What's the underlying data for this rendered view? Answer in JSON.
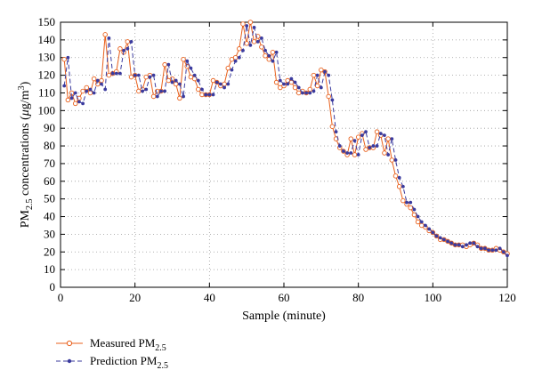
{
  "chart_data": {
    "type": "line",
    "title": "",
    "xlabel": "Sample (minute)",
    "ylabel": {
      "main": "PM",
      "sub": "2.5",
      "rest": " concentrations (",
      "unit_mu": "μ",
      "unit_g": "g/m",
      "unit_sup": "3",
      "close": ")"
    },
    "xlim": [
      0,
      120
    ],
    "ylim": [
      0,
      150
    ],
    "x_ticks": [
      0,
      20,
      40,
      60,
      80,
      100,
      120
    ],
    "y_ticks": [
      0,
      10,
      20,
      30,
      40,
      50,
      60,
      70,
      80,
      90,
      100,
      110,
      120,
      130,
      140,
      150
    ],
    "grid": true,
    "grid_style": "dotted",
    "legend_position": "below plot, left",
    "x": [
      1,
      2,
      3,
      4,
      5,
      6,
      7,
      8,
      9,
      10,
      11,
      12,
      13,
      14,
      15,
      16,
      17,
      18,
      19,
      20,
      21,
      22,
      23,
      24,
      25,
      26,
      27,
      28,
      29,
      30,
      31,
      32,
      33,
      34,
      35,
      36,
      37,
      38,
      39,
      40,
      41,
      42,
      43,
      44,
      45,
      46,
      47,
      48,
      49,
      50,
      51,
      52,
      53,
      54,
      55,
      56,
      57,
      58,
      59,
      60,
      61,
      62,
      63,
      64,
      65,
      66,
      67,
      68,
      69,
      70,
      71,
      72,
      73,
      74,
      75,
      76,
      77,
      78,
      79,
      80,
      81,
      82,
      83,
      84,
      85,
      86,
      87,
      88,
      89,
      90,
      91,
      92,
      93,
      94,
      95,
      96,
      97,
      98,
      99,
      100,
      101,
      102,
      103,
      104,
      105,
      106,
      107,
      108,
      109,
      110,
      111,
      112,
      113,
      114,
      115,
      116,
      117,
      118,
      119,
      120
    ],
    "series": [
      {
        "name": {
          "main": "Measured PM",
          "sub": "2.5"
        },
        "color": "#e8601c",
        "marker": "open-circle",
        "line_style": "solid",
        "values": [
          129,
          106,
          110,
          104,
          107,
          111,
          113,
          110,
          118,
          115,
          117,
          143,
          120,
          121,
          122,
          135,
          133,
          139,
          119,
          120,
          111,
          112,
          119,
          120,
          108,
          111,
          111,
          126,
          117,
          118,
          115,
          107,
          129,
          125,
          119,
          118,
          112,
          109,
          109,
          109,
          117,
          116,
          114,
          115,
          124,
          129,
          130,
          135,
          149,
          138,
          150,
          139,
          142,
          136,
          131,
          129,
          133,
          116,
          113,
          114,
          117,
          116,
          113,
          110,
          111,
          110,
          112,
          120,
          114,
          123,
          122,
          108,
          91,
          84,
          79,
          77,
          75,
          84,
          75,
          85,
          87,
          78,
          79,
          79,
          88,
          86,
          76,
          84,
          72,
          63,
          57,
          49,
          47,
          45,
          41,
          37,
          35,
          34,
          32,
          31,
          29,
          27,
          27,
          26,
          25,
          24,
          24,
          24,
          23,
          24,
          25,
          24,
          22,
          22,
          21,
          21,
          22,
          21,
          20,
          19
        ]
      },
      {
        "name": {
          "main": "Prediction PM",
          "sub": "2.5"
        },
        "color": "#3b3b9e",
        "marker": "filled-dot",
        "line_style": "dashed",
        "values": [
          114,
          130,
          107,
          110,
          105,
          104,
          111,
          112,
          110,
          117,
          115,
          112,
          141,
          121,
          121,
          121,
          134,
          135,
          139,
          120,
          120,
          111,
          112,
          119,
          120,
          108,
          111,
          111,
          126,
          116,
          117,
          115,
          108,
          128,
          124,
          120,
          117,
          112,
          109,
          109,
          109,
          116,
          115,
          113,
          115,
          123,
          128,
          130,
          134,
          148,
          137,
          147,
          139,
          141,
          134,
          131,
          128,
          133,
          117,
          115,
          115,
          118,
          116,
          113,
          110,
          110,
          110,
          111,
          120,
          113,
          122,
          120,
          106,
          88,
          80,
          77,
          76,
          76,
          83,
          75,
          86,
          88,
          79,
          80,
          80,
          87,
          86,
          75,
          84,
          72,
          62,
          57,
          48,
          48,
          44,
          40,
          37,
          35,
          33,
          31,
          29,
          28,
          27,
          26,
          25,
          24,
          24,
          23,
          24,
          25,
          25,
          23,
          22,
          22,
          21,
          21,
          21,
          22,
          20,
          18
        ]
      }
    ]
  }
}
